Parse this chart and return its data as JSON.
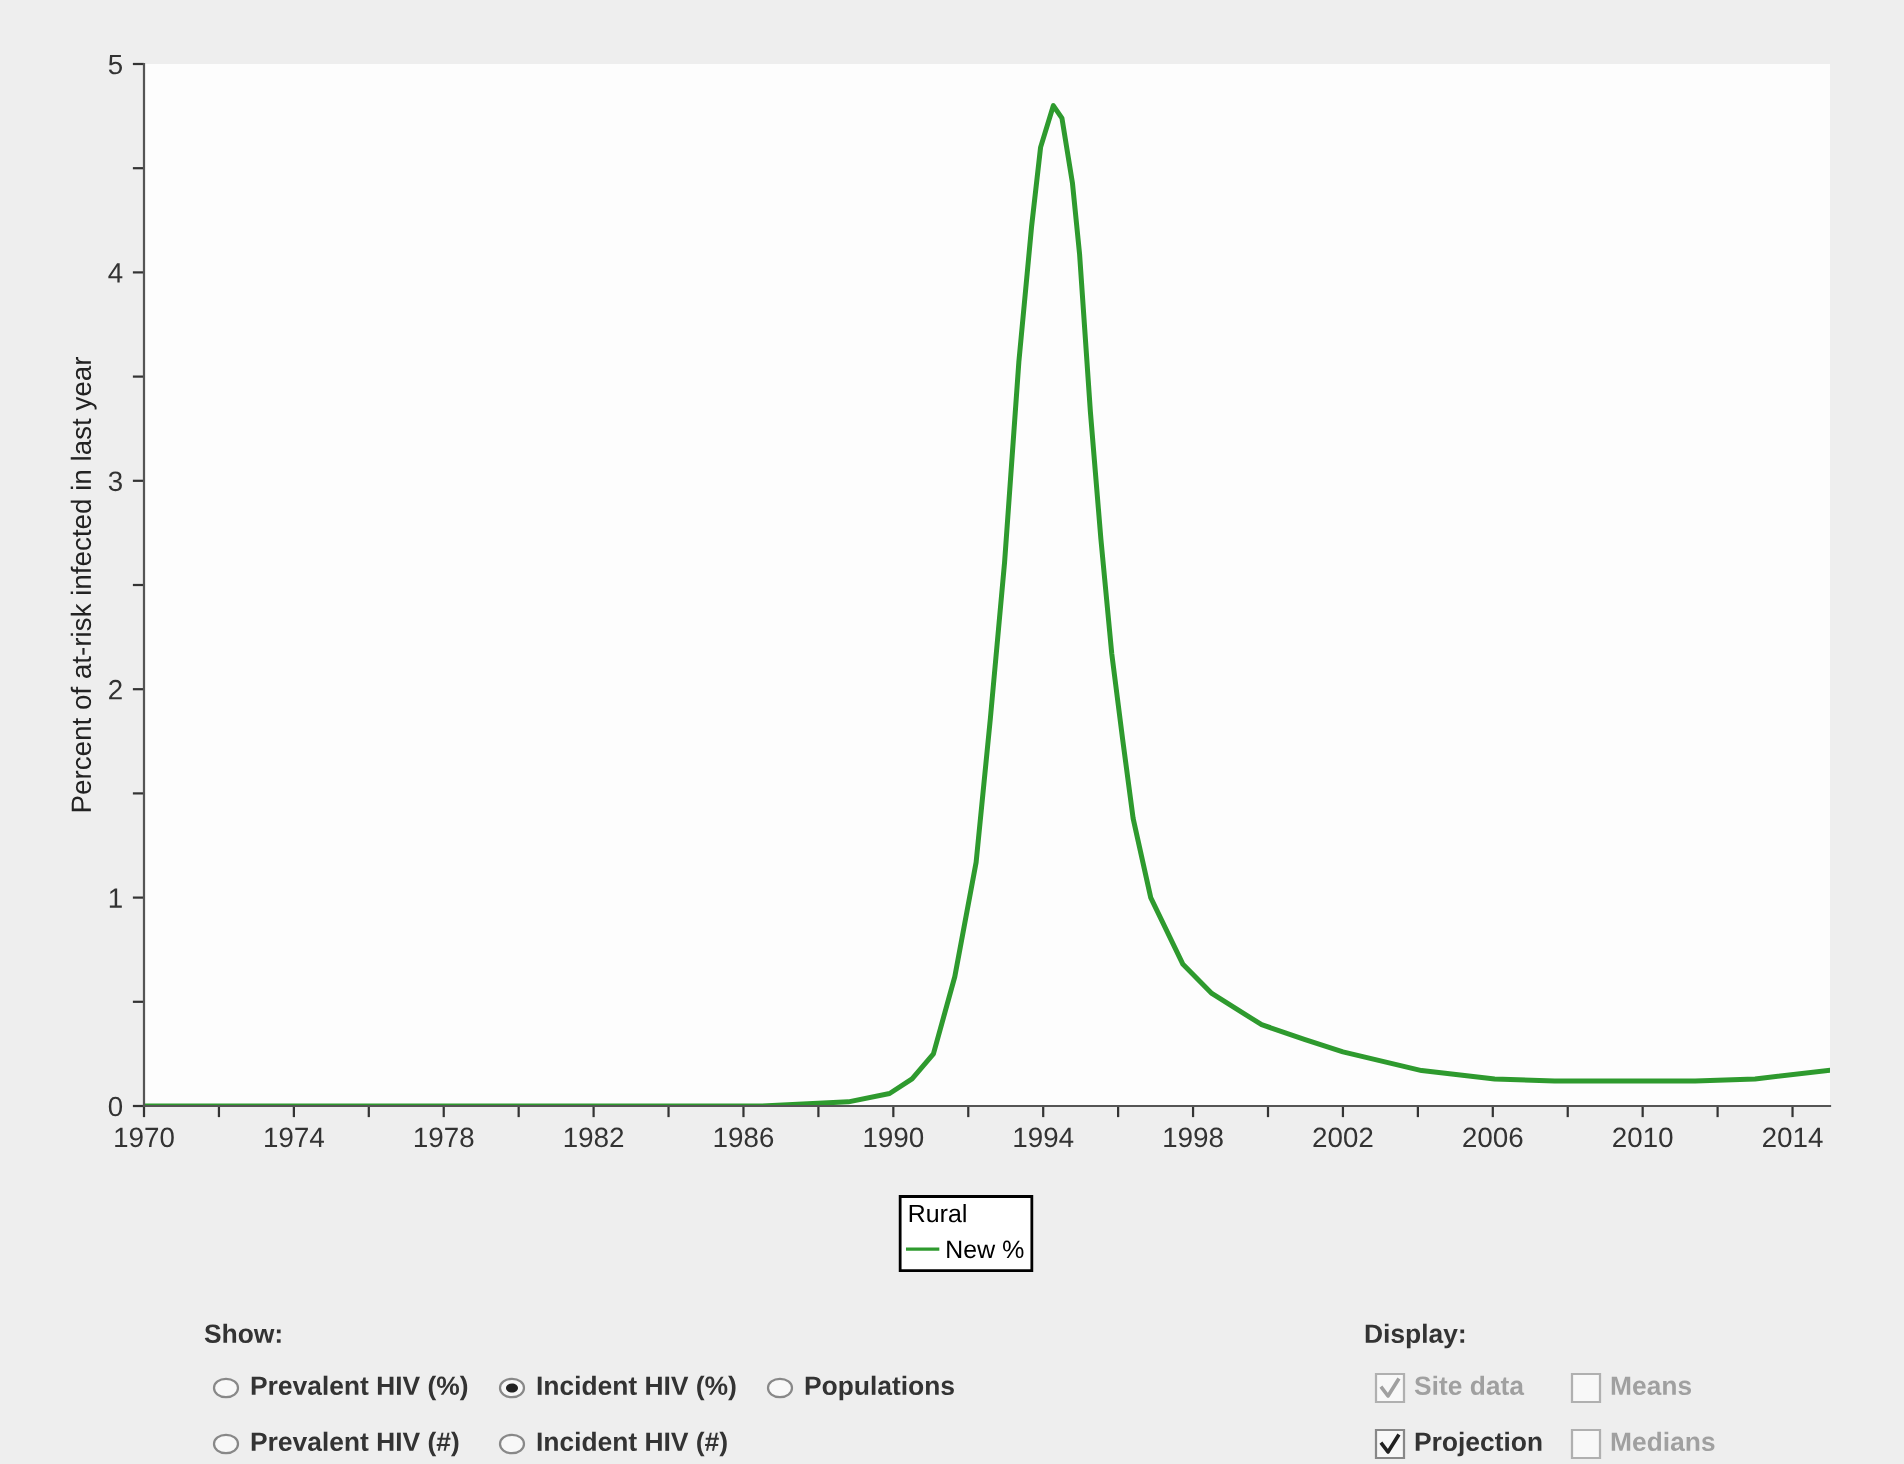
{
  "chart_data": {
    "type": "line",
    "ylabel": "Percent of at-risk infected in last year",
    "legend_title": "Rural",
    "legend": "bottom",
    "xlim": [
      1970,
      2015
    ],
    "ylim": [
      0,
      5
    ],
    "xticks": [
      1970,
      {
        "value": 1972,
        "label": null
      },
      1974,
      {
        "value": 1976,
        "label": null
      },
      1978,
      {
        "value": 1980,
        "label": null
      },
      1982,
      {
        "value": 1984,
        "label": null
      },
      1986,
      {
        "value": 1988,
        "label": null
      },
      1990,
      {
        "value": 1992,
        "label": null
      },
      1994,
      {
        "value": 1996,
        "label": null
      },
      1998,
      {
        "value": 2000,
        "label": null
      },
      2002,
      {
        "value": 2004,
        "label": null
      },
      2006,
      {
        "value": 2008,
        "label": null
      },
      2010,
      {
        "value": 2012,
        "label": null
      },
      2014
    ],
    "yticks": [
      0,
      {
        "value": 0.5,
        "label": null
      },
      1,
      {
        "value": 1.5,
        "label": null
      },
      2,
      {
        "value": 2.5,
        "label": null
      },
      3,
      {
        "value": 3.5,
        "label": null
      },
      4,
      {
        "value": 4.5,
        "label": null
      },
      5
    ],
    "grid": false,
    "marker": "none",
    "line_style": "solid",
    "series": [
      {
        "name": "New %",
        "color": "#2e9a2e",
        "x": [
          1970,
          1980,
          1986.5,
          1988.8,
          1989.9,
          1990.5,
          1991.07,
          1991.64,
          1992.21,
          1992.59,
          1992.97,
          1993.35,
          1993.69,
          1993.93,
          1994.27,
          1994.5,
          1994.78,
          1994.97,
          1995.26,
          1995.54,
          1995.83,
          1996.12,
          1996.4,
          1996.87,
          1997.73,
          1998.5,
          1999.83,
          2000.97,
          2002.0,
          2004.1,
          2006.05,
          2007.65,
          2011.4,
          2013.0,
          2014.94
        ],
        "values": [
          0,
          0,
          0,
          0.02,
          0.06,
          0.13,
          0.25,
          0.62,
          1.17,
          1.86,
          2.61,
          3.57,
          4.22,
          4.6,
          4.8,
          4.74,
          4.43,
          4.09,
          3.33,
          2.72,
          2.17,
          1.76,
          1.38,
          1.0,
          0.68,
          0.54,
          0.39,
          0.32,
          0.26,
          0.17,
          0.13,
          0.12,
          0.12,
          0.13,
          0.17
        ]
      }
    ],
    "annotations": [
      "Show:",
      "Prevalent HIV (%)",
      "Incident HIV (%)",
      "Populations",
      "Prevalent HIV (#)",
      "Incident HIV (#)",
      "Display:",
      "Site data",
      "Means",
      "Projection",
      "Medians"
    ]
  }
}
